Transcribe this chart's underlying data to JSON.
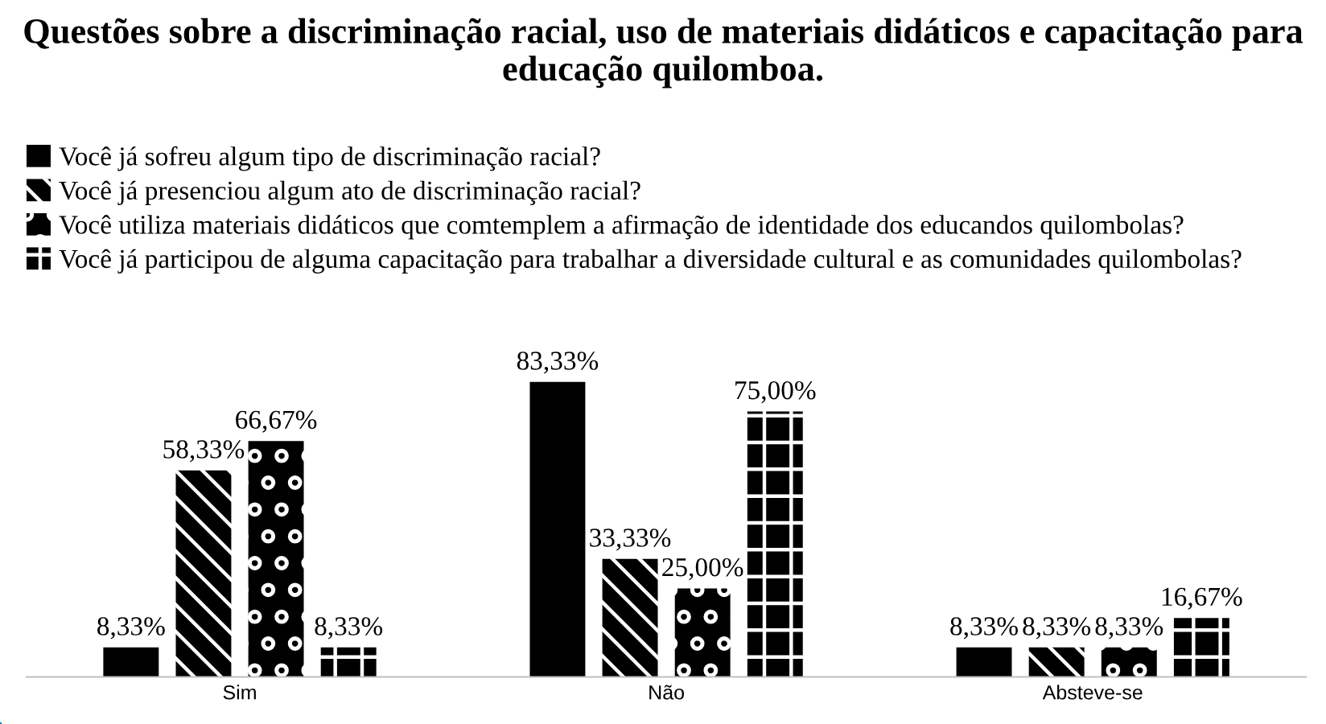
{
  "chart_data": {
    "type": "bar",
    "title": "Questões sobre a discriminação racial, uso de materiais didáticos e capacitação para educação quilomboa.",
    "categories": [
      "Sim",
      "Não",
      "Absteve-se"
    ],
    "series": [
      {
        "name": "Você já sofreu algum tipo de discriminação racial?",
        "color": "#000000",
        "values": [
          8.33,
          83.33,
          8.33
        ],
        "value_labels": [
          "8,33%",
          "83,33%",
          "8,33%"
        ]
      },
      {
        "name": "Você já presenciou algum ato de discriminação racial?",
        "color": "#000000",
        "values": [
          58.33,
          33.33,
          8.33
        ],
        "value_labels": [
          "58,33%",
          "33,33%",
          "8,33%"
        ]
      },
      {
        "name": "Você utiliza materiais didáticos que comtemplem a afirmação de identidade dos educandos quilombolas?",
        "color": "#000000",
        "values": [
          66.67,
          25.0,
          8.33
        ],
        "value_labels": [
          "66,67%",
          "25,00%",
          "8,33%"
        ]
      },
      {
        "name": "Você já participou de alguma capacitação para trabalhar a diversidade cultural e as comunidades quilombolas?",
        "color": "#000000",
        "values": [
          8.33,
          75.0,
          16.67
        ],
        "value_labels": [
          "8,33%",
          "75,00%",
          "16,67%"
        ]
      }
    ],
    "legend": "top left",
    "grid": false
  }
}
